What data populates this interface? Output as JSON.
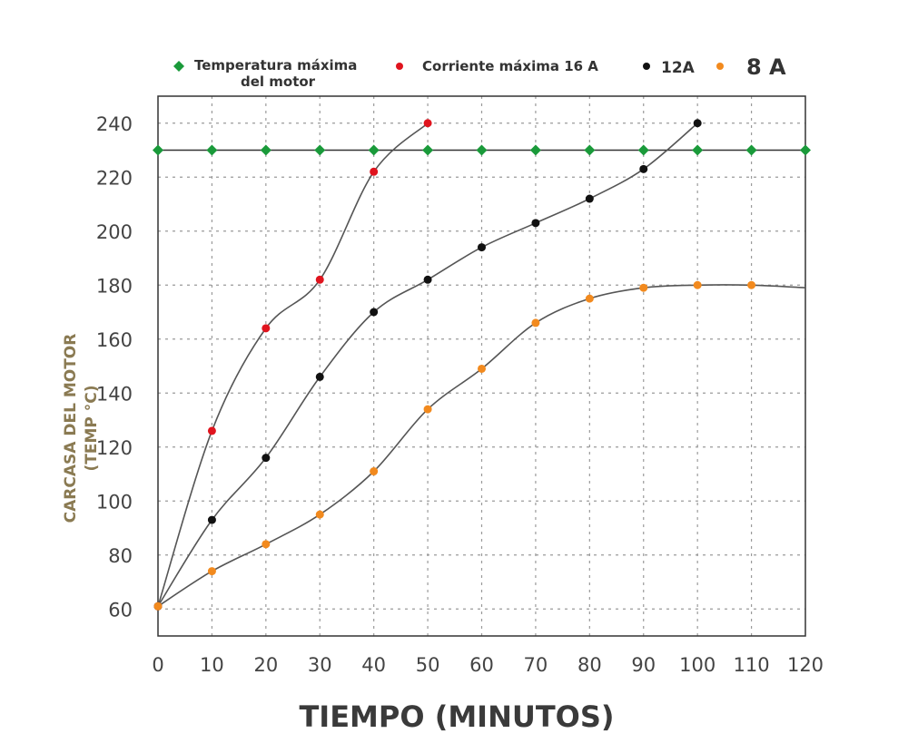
{
  "chart_data": {
    "type": "line",
    "xlabel": "TIEMPO (MINUTOS)",
    "ylabel_lines": [
      "CARCASA DEL MOTOR",
      "(TEMP °C)"
    ],
    "xlim": [
      0,
      120
    ],
    "ylim": [
      50,
      250
    ],
    "x_ticks": [
      0,
      10,
      20,
      30,
      40,
      50,
      60,
      70,
      80,
      90,
      100,
      110,
      120
    ],
    "y_ticks": [
      60,
      80,
      100,
      120,
      140,
      160,
      180,
      200,
      220,
      240
    ],
    "grid": true,
    "legend_position": "top",
    "series": [
      {
        "name_lines": [
          "Temperatura máxima",
          "del motor"
        ],
        "marker": "diamond",
        "color": "#1a9a3a",
        "x": [
          0,
          10,
          20,
          30,
          40,
          50,
          60,
          70,
          80,
          90,
          100,
          110,
          120
        ],
        "y": [
          230,
          230,
          230,
          230,
          230,
          230,
          230,
          230,
          230,
          230,
          230,
          230,
          230
        ]
      },
      {
        "name_lines": [
          "Corriente máxima 16 A"
        ],
        "marker": "circle",
        "color": "#e0141e",
        "x": [
          0,
          10,
          20,
          30,
          40,
          50
        ],
        "y": [
          61,
          126,
          164,
          182,
          222,
          240
        ]
      },
      {
        "name_lines": [
          "12A"
        ],
        "marker": "circle",
        "color": "#111111",
        "x": [
          0,
          10,
          20,
          30,
          40,
          50,
          60,
          70,
          80,
          90,
          100
        ],
        "y": [
          61,
          93,
          116,
          146,
          170,
          182,
          194,
          203,
          212,
          223,
          240
        ]
      },
      {
        "name_lines": [
          "8 A"
        ],
        "marker": "circle",
        "color": "#f28a1e",
        "x": [
          0,
          10,
          20,
          30,
          40,
          50,
          60,
          70,
          80,
          90,
          100,
          110,
          120
        ],
        "y": [
          61,
          74,
          84,
          95,
          111,
          134,
          149,
          166,
          175,
          179,
          180,
          180,
          179
        ],
        "marker_count": 12
      }
    ]
  }
}
